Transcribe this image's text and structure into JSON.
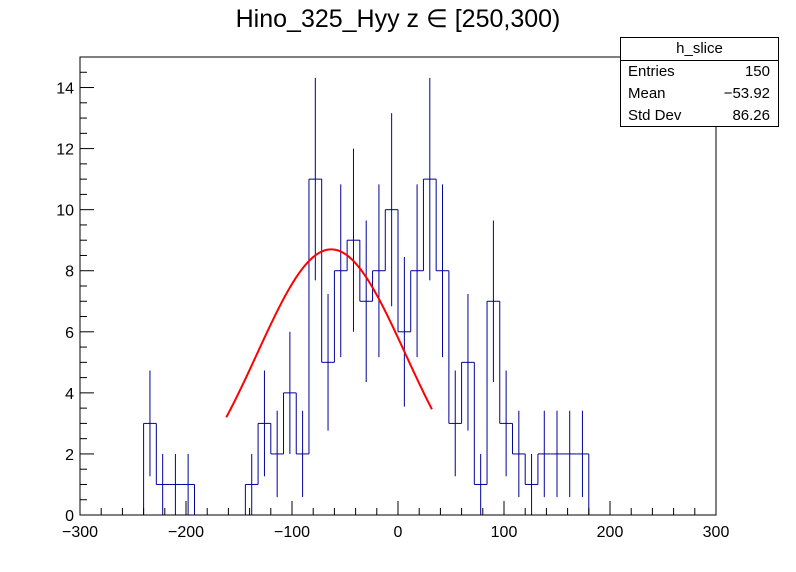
{
  "title": "Hino_325_Hyy z  ∈ [250,300)",
  "stats_box": {
    "name": "h_slice",
    "rows": [
      {
        "label": "Entries",
        "value": "150"
      },
      {
        "label": "Mean",
        "value": "−53.92"
      },
      {
        "label": "Std Dev",
        "value": "86.26"
      }
    ]
  },
  "chart_data": {
    "type": "histogram",
    "title": "Hino_325_Hyy z  ∈ [250,300)",
    "xlabel": "",
    "ylabel": "",
    "xlim": [
      -300,
      300
    ],
    "ylim": [
      0,
      15
    ],
    "x_ticks": [
      -300,
      -200,
      -100,
      0,
      100,
      200,
      300
    ],
    "x_tick_labels": [
      "−300",
      "−200",
      "−100",
      "0",
      "100",
      "200",
      "300"
    ],
    "y_ticks": [
      0,
      2,
      4,
      6,
      8,
      10,
      12,
      14
    ],
    "y_tick_labels": [
      "0",
      "2",
      "4",
      "6",
      "8",
      "10",
      "12",
      "14"
    ],
    "bin_width": 12,
    "bin_edges_start": -300,
    "counts": [
      0,
      0,
      0,
      0,
      0,
      3,
      1,
      1,
      1,
      0,
      0,
      0,
      0,
      1,
      3,
      2,
      4,
      2,
      11,
      5,
      8,
      9,
      7,
      8,
      10,
      6,
      8,
      11,
      8,
      3,
      5,
      1,
      7,
      3,
      2,
      1,
      2,
      2,
      2,
      2,
      0,
      0,
      0,
      0,
      0,
      0,
      0,
      0,
      0,
      0
    ],
    "line_color": "#000099",
    "fit": {
      "type": "gaussian",
      "amplitude": 8.7,
      "mean": -63,
      "sigma": 70,
      "range": [
        -162,
        32
      ],
      "color": "#ff0000"
    },
    "grid": false
  }
}
